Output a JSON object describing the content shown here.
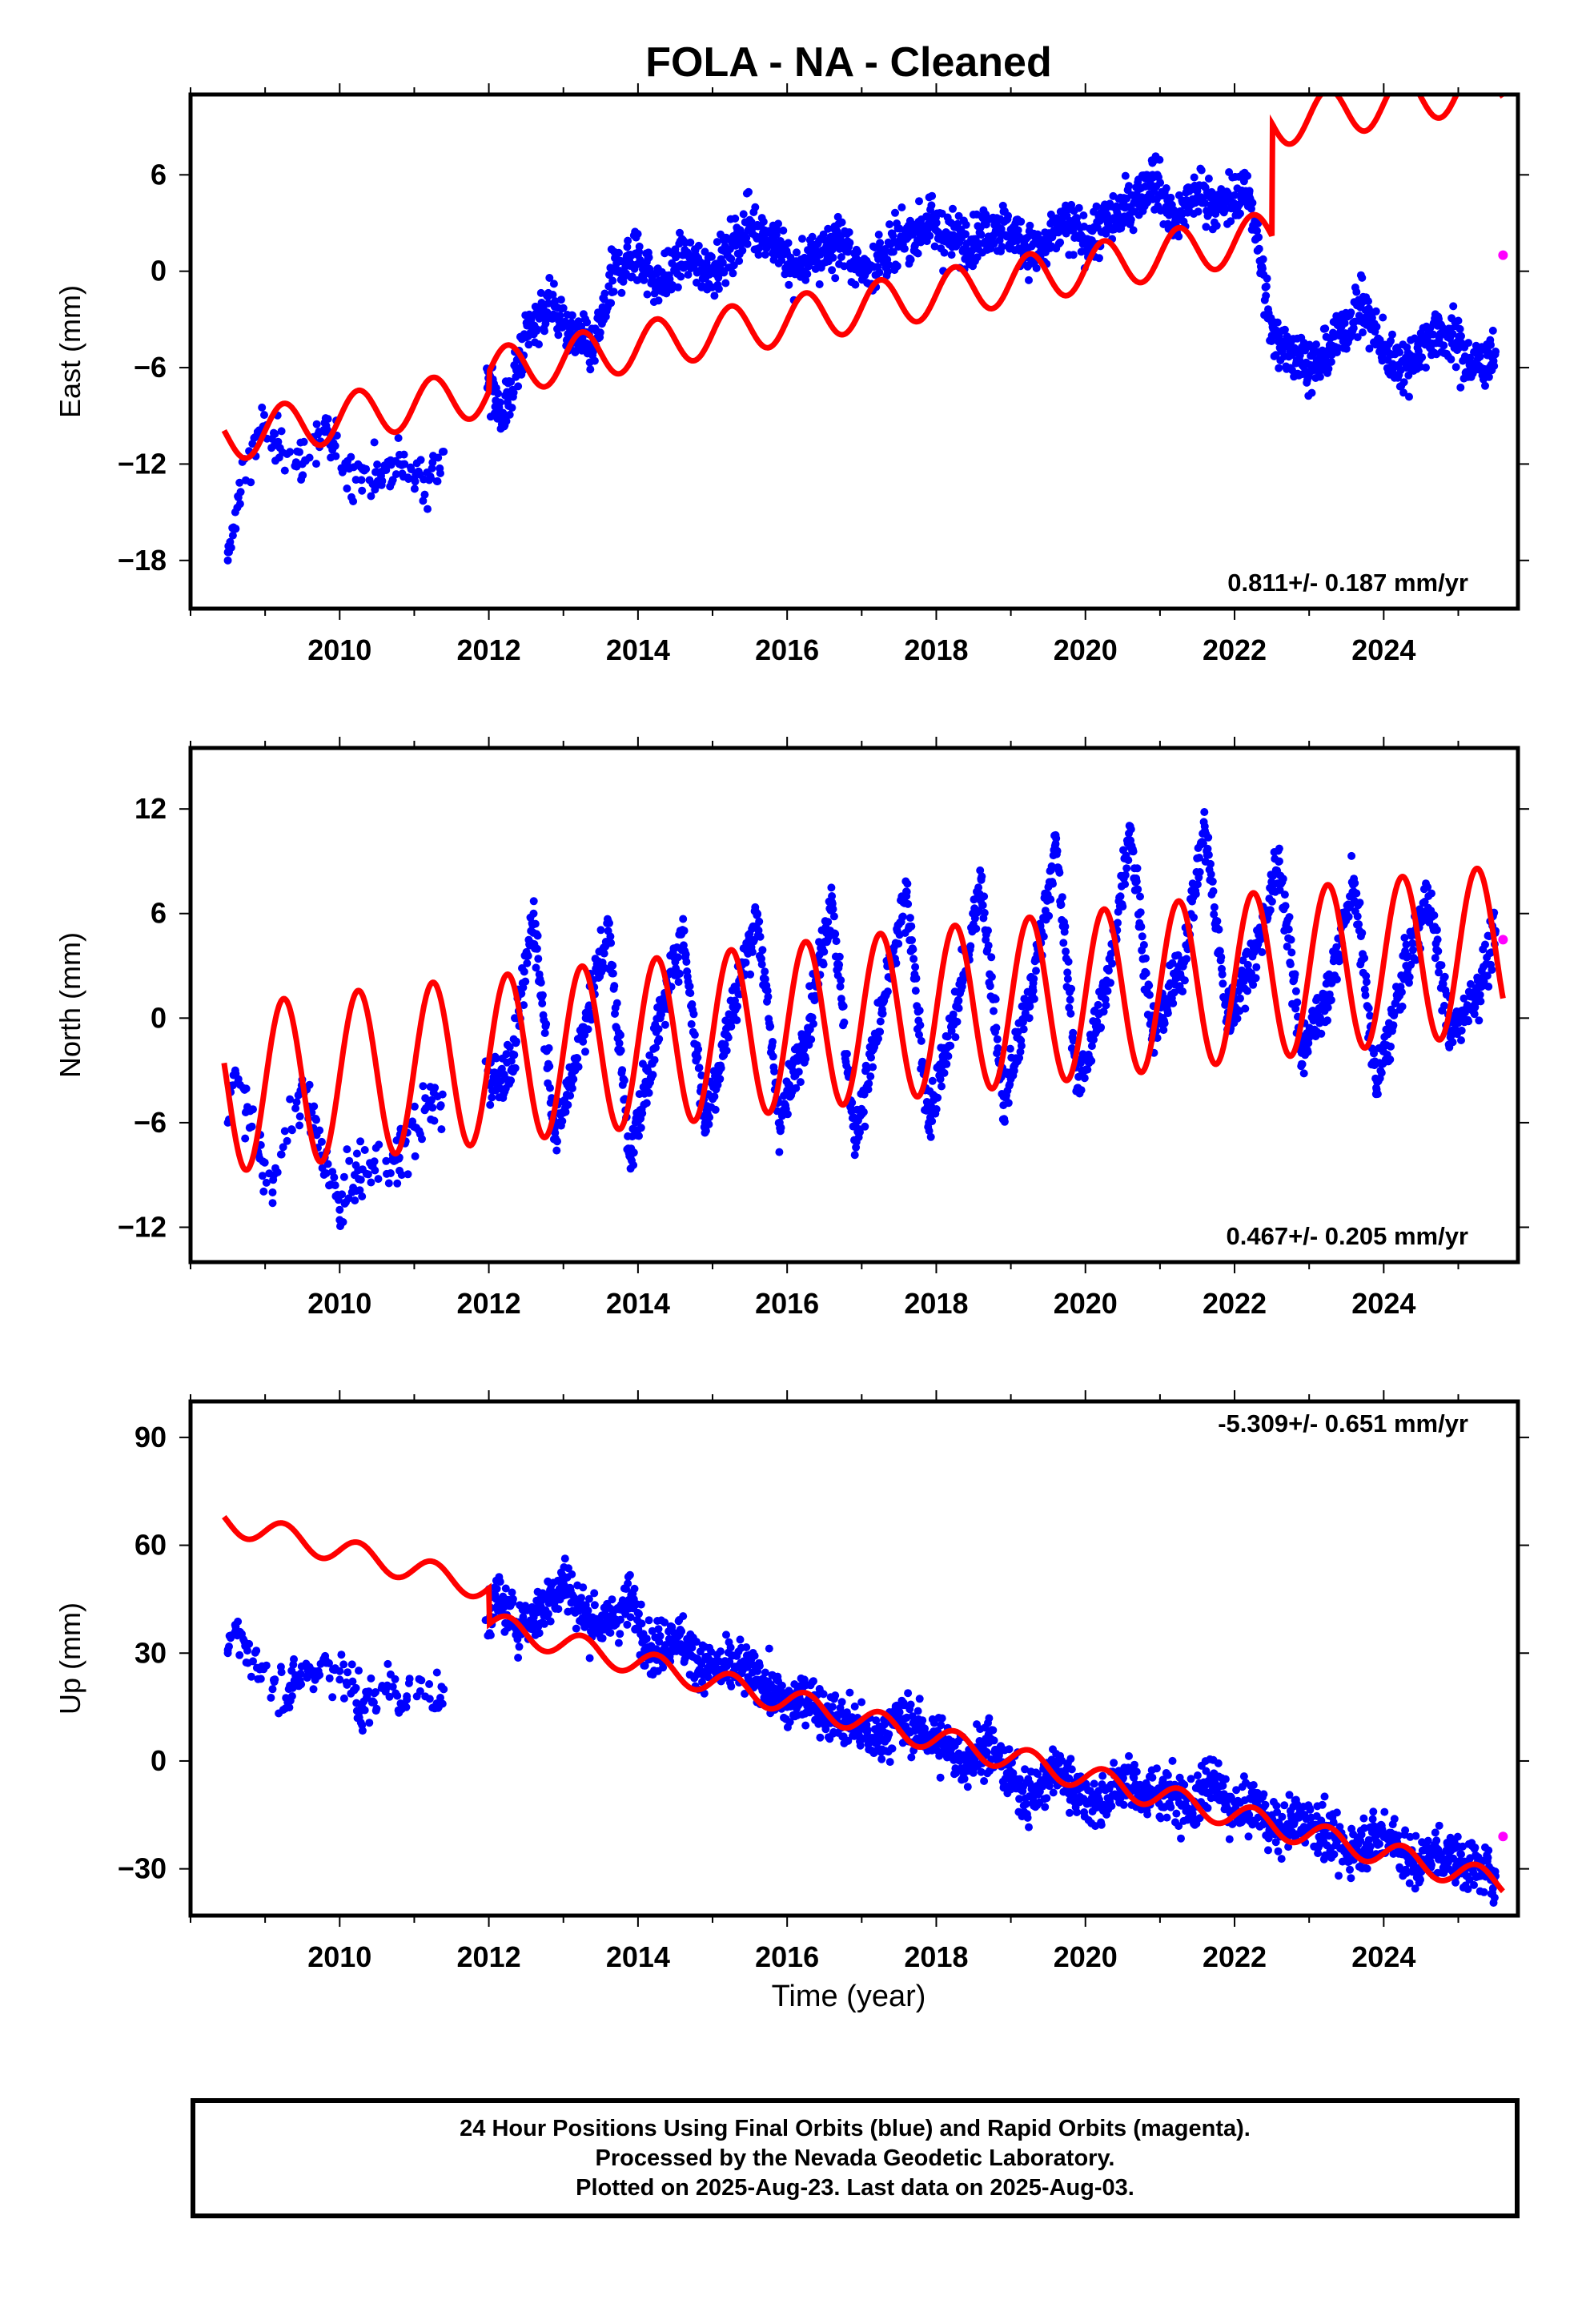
{
  "title": "FOLA  - NA - Cleaned",
  "xlabel": "Time (year)",
  "colors": {
    "final_orbits": "#0000ff",
    "rapid_orbits": "#ff00ff",
    "model": "#ff0000",
    "frame": "#000000"
  },
  "caption": [
    "24 Hour Positions Using Final Orbits (blue) and Rapid Orbits (magenta).",
    "Processed by the Nevada Geodetic Laboratory.",
    "Plotted on 2025-Aug-23. Last data on 2025-Aug-03."
  ],
  "chart_data": [
    {
      "type": "scatter",
      "component": "East",
      "ylabel": "East (mm)",
      "rate_label": "0.811+/- 0.187 mm/yr",
      "rate_position": "bottom-right",
      "xlim": [
        2008.0,
        2025.8
      ],
      "ylim": [
        -21,
        11
      ],
      "xticks": [
        2010,
        2012,
        2014,
        2016,
        2018,
        2020,
        2022,
        2024
      ],
      "yticks": [
        -18,
        -12,
        -6,
        0,
        6
      ],
      "series": [
        {
          "name": "Final Orbits",
          "color": "#0000ff",
          "style": "points",
          "x": [
            2008.5,
            2008.6,
            2008.9,
            2009.2,
            2009.5,
            2009.8,
            2010.1,
            2010.4,
            2010.8,
            2011.2,
            2012.0,
            2012.2,
            2012.5,
            2012.8,
            2013.1,
            2013.4,
            2013.7,
            2014.0,
            2014.3,
            2014.6,
            2014.9,
            2015.2,
            2015.5,
            2015.8,
            2016.1,
            2016.4,
            2016.7,
            2017.0,
            2017.3,
            2017.6,
            2017.9,
            2018.2,
            2018.5,
            2018.8,
            2019.1,
            2019.4,
            2019.7,
            2020.0,
            2020.3,
            2020.6,
            2020.9,
            2021.2,
            2021.5,
            2021.8,
            2022.2,
            2022.5,
            2022.8,
            2023.1,
            2023.4,
            2023.7,
            2024.0,
            2024.3,
            2024.6,
            2024.9,
            2025.2,
            2025.5
          ],
          "y": [
            -18,
            -15,
            -10,
            -11,
            -12,
            -10,
            -12,
            -13,
            -12,
            -13,
            -7,
            -9,
            -4,
            -2,
            -4,
            -5,
            0,
            1,
            -1,
            1,
            0,
            1,
            3,
            2,
            0,
            1,
            2,
            0,
            1,
            2,
            3,
            2,
            2,
            3,
            2,
            1,
            3,
            2,
            3,
            4,
            6,
            3,
            5,
            4,
            5,
            -4,
            -5,
            -6,
            -4,
            -2,
            -5,
            -6,
            -4,
            -4,
            -6,
            -5
          ]
        },
        {
          "name": "Rapid Orbits",
          "color": "#ff00ff",
          "style": "points",
          "x": [
            2025.6
          ],
          "y": [
            1
          ]
        },
        {
          "name": "Model",
          "color": "#ff0000",
          "style": "line",
          "rate": 0.811,
          "offset": -6.3,
          "t0": 2012.0,
          "amplitude": 1.5,
          "phase": 0.0,
          "breaks": [
            [
              2012.0,
              0
            ],
            [
              2022.5,
              7.0
            ]
          ],
          "x_range": [
            2008.45,
            2025.6
          ]
        }
      ]
    },
    {
      "type": "scatter",
      "component": "North",
      "ylabel": "North (mm)",
      "rate_label": "0.467+/- 0.205 mm/yr",
      "rate_position": "bottom-right",
      "xlim": [
        2008.0,
        2025.8
      ],
      "ylim": [
        -14,
        15.5
      ],
      "xticks": [
        2010,
        2012,
        2014,
        2016,
        2018,
        2020,
        2022,
        2024
      ],
      "yticks": [
        -12,
        -6,
        0,
        6,
        12
      ],
      "series": [
        {
          "name": "Final Orbits",
          "color": "#0000ff",
          "style": "points",
          "x": [
            2008.5,
            2008.6,
            2009.1,
            2009.5,
            2009.8,
            2010.0,
            2010.2,
            2010.8,
            2011.2,
            2012.3,
            2012.6,
            2012.9,
            2013.3,
            2013.6,
            2013.9,
            2014.3,
            2014.6,
            2014.9,
            2015.3,
            2015.6,
            2015.9,
            2016.3,
            2016.6,
            2016.9,
            2017.3,
            2017.6,
            2017.9,
            2018.3,
            2018.6,
            2018.9,
            2019.3,
            2019.6,
            2019.9,
            2020.3,
            2020.6,
            2020.9,
            2021.3,
            2021.6,
            2021.9,
            2022.3,
            2022.6,
            2022.9,
            2023.3,
            2023.6,
            2023.9,
            2024.3,
            2024.6,
            2024.9,
            2025.3,
            2025.5
          ],
          "y": [
            -6,
            -3,
            -10,
            -4,
            -8,
            -11,
            -9,
            -8,
            -5,
            -3,
            6,
            -7,
            0,
            5,
            -8,
            0,
            5,
            -6,
            1,
            6,
            -6,
            0,
            7,
            -7,
            1,
            7,
            -6,
            1,
            8,
            -5,
            2,
            10,
            -4,
            2,
            11,
            -1,
            3,
            11,
            0,
            4,
            9,
            -2,
            2,
            8,
            -4,
            3,
            7,
            -1,
            2,
            5
          ]
        },
        {
          "name": "Rapid Orbits",
          "color": "#ff00ff",
          "style": "points",
          "x": [
            2025.6
          ],
          "y": [
            4.5
          ]
        },
        {
          "name": "Model",
          "color": "#ff0000",
          "style": "line",
          "rate": 0.467,
          "offset": -2.4,
          "t0": 2012.0,
          "amplitude": 4.8,
          "phase": 0.0,
          "x_range": [
            2008.45,
            2025.6
          ]
        }
      ]
    },
    {
      "type": "scatter",
      "component": "Up",
      "ylabel": "Up (mm)",
      "rate_label": "-5.309+/- 0.651 mm/yr",
      "rate_position": "top-right",
      "xlim": [
        2008.0,
        2025.8
      ],
      "ylim": [
        -43,
        100
      ],
      "xticks": [
        2010,
        2012,
        2014,
        2016,
        2018,
        2020,
        2022,
        2024
      ],
      "yticks": [
        -30,
        0,
        30,
        60,
        90
      ],
      "series": [
        {
          "name": "Final Orbits",
          "color": "#0000ff",
          "style": "points",
          "x": [
            2008.5,
            2008.6,
            2009.1,
            2009.4,
            2009.8,
            2010.0,
            2010.3,
            2010.6,
            2010.9,
            2011.3,
            2012.1,
            2012.4,
            2012.7,
            2013.0,
            2013.3,
            2013.6,
            2013.9,
            2014.2,
            2014.5,
            2014.8,
            2015.1,
            2015.4,
            2015.7,
            2016.0,
            2016.3,
            2016.6,
            2016.9,
            2017.2,
            2017.5,
            2017.8,
            2018.1,
            2018.4,
            2018.7,
            2019.0,
            2019.3,
            2019.6,
            2019.9,
            2020.2,
            2020.5,
            2020.8,
            2021.1,
            2021.4,
            2021.7,
            2022.0,
            2022.3,
            2022.6,
            2022.9,
            2023.2,
            2023.5,
            2023.8,
            2024.1,
            2024.4,
            2024.7,
            2025.0,
            2025.3,
            2025.5
          ],
          "y": [
            30,
            36,
            20,
            22,
            28,
            25,
            15,
            20,
            18,
            16,
            45,
            38,
            42,
            50,
            40,
            38,
            45,
            30,
            35,
            28,
            25,
            26,
            22,
            15,
            18,
            12,
            10,
            5,
            12,
            8,
            4,
            0,
            5,
            -5,
            -10,
            -2,
            -8,
            -12,
            -5,
            -10,
            -8,
            -14,
            -5,
            -15,
            -12,
            -20,
            -15,
            -20,
            -25,
            -22,
            -20,
            -30,
            -25,
            -28,
            -30,
            -32
          ]
        },
        {
          "name": "Rapid Orbits",
          "color": "#ff00ff",
          "style": "points",
          "x": [
            2025.6
          ],
          "y": [
            -21
          ]
        },
        {
          "name": "Model",
          "color": "#ff0000",
          "style": "line",
          "rate": -5.309,
          "offset": 38.0,
          "t0": 2012.0,
          "amplitude": 3.5,
          "phase": 0.0,
          "breaks": [
            [
              2012.0,
              -12.0
            ]
          ],
          "x_range": [
            2008.45,
            2025.6
          ]
        }
      ]
    }
  ]
}
